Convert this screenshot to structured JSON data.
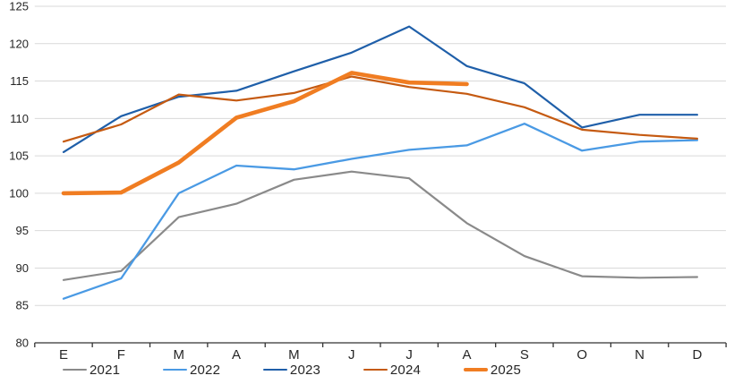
{
  "chart_data": {
    "type": "line",
    "title": "",
    "xlabel": "",
    "ylabel": "",
    "categories": [
      "E",
      "F",
      "M",
      "A",
      "M",
      "J",
      "J",
      "A",
      "S",
      "O",
      "N",
      "D"
    ],
    "ylim": [
      80,
      125
    ],
    "ytick_step": 5,
    "ytick_labels": [
      "80",
      "85",
      "90",
      "95",
      "100",
      "105",
      "110",
      "115",
      "120",
      "125"
    ],
    "grid": "horizontal",
    "legend_position": "bottom",
    "series": [
      {
        "name": "2021",
        "color": "#8A8A8A",
        "stroke_width": 2.2,
        "values": [
          88.4,
          89.6,
          96.8,
          98.6,
          101.8,
          102.9,
          102.0,
          96.0,
          91.6,
          88.9,
          88.7,
          88.8
        ]
      },
      {
        "name": "2022",
        "color": "#4A9AE4",
        "stroke_width": 2.3,
        "values": [
          85.9,
          88.6,
          100.0,
          103.7,
          103.2,
          104.6,
          105.8,
          106.4,
          109.3,
          105.7,
          106.9,
          107.1
        ]
      },
      {
        "name": "2023",
        "color": "#1F5FA9",
        "stroke_width": 2.2,
        "values": [
          105.5,
          110.3,
          112.9,
          113.7,
          116.3,
          118.8,
          122.3,
          117.0,
          114.7,
          108.8,
          110.5,
          110.5
        ]
      },
      {
        "name": "2024",
        "color": "#C55A11",
        "stroke_width": 2.2,
        "values": [
          106.9,
          109.2,
          113.2,
          112.4,
          113.4,
          115.6,
          114.2,
          113.3,
          111.5,
          108.5,
          107.8,
          107.3
        ]
      },
      {
        "name": "2025",
        "color": "#F07D22",
        "stroke_width": 4.6,
        "values": [
          100.0,
          100.1,
          104.1,
          110.1,
          112.3,
          116.1,
          114.8,
          114.6,
          null,
          null,
          null,
          null
        ]
      }
    ]
  },
  "colors": {
    "gridline": "#D9D9D9",
    "axis_line": "#333333",
    "tick_label": "#262626"
  }
}
